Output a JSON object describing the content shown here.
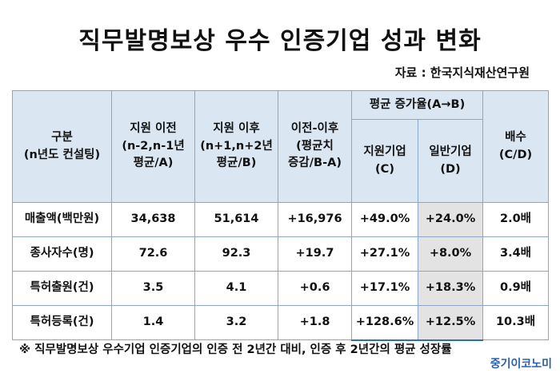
{
  "title": "직무발명보상 우수 인증기업 성과 변화",
  "source": "자료 : 한국지식재산연구원",
  "table": {
    "header": {
      "category": [
        "구분",
        "(n년도 컨설팅)"
      ],
      "before": [
        "지원 이전",
        "(n-2,n-1년",
        "평균/A)"
      ],
      "after": [
        "지원 이후",
        "(n+1,n+2년",
        "평균/B)"
      ],
      "diff": [
        "이전-이후",
        "(평균치",
        "증감/B-A)"
      ],
      "growth_group": "평균 증가율(A→B)",
      "supported": [
        "지원기업",
        "(C)"
      ],
      "general": [
        "일반기업",
        "(D)"
      ],
      "ratio": [
        "배수",
        "(C/D)"
      ]
    },
    "rows": [
      {
        "label": "매출액(백만원)",
        "before": "34,638",
        "after": "51,614",
        "diff": "+16,976",
        "supported": "+49.0%",
        "general": "+24.0%",
        "ratio": "2.0배"
      },
      {
        "label": "종사자수(명)",
        "before": "72.6",
        "after": "92.3",
        "diff": "+19.7",
        "supported": "+27.1%",
        "general": "+8.0%",
        "ratio": "3.4배"
      },
      {
        "label": "특허출원(건)",
        "before": "3.5",
        "after": "4.1",
        "diff": "+0.6",
        "supported": "+17.1%",
        "general": "+18.3%",
        "ratio": "0.9배"
      },
      {
        "label": "특허등록(건)",
        "before": "1.4",
        "after": "3.2",
        "diff": "+1.8",
        "supported": "+128.6%",
        "general": "+12.5%",
        "ratio": "10.3배"
      }
    ]
  },
  "footnote": "※ 직무발명보상 우수기업 인증기업의 인증 전 2년간 대비, 인증 후 2년간의 평균 성장률",
  "logo": "중기이코노미"
}
